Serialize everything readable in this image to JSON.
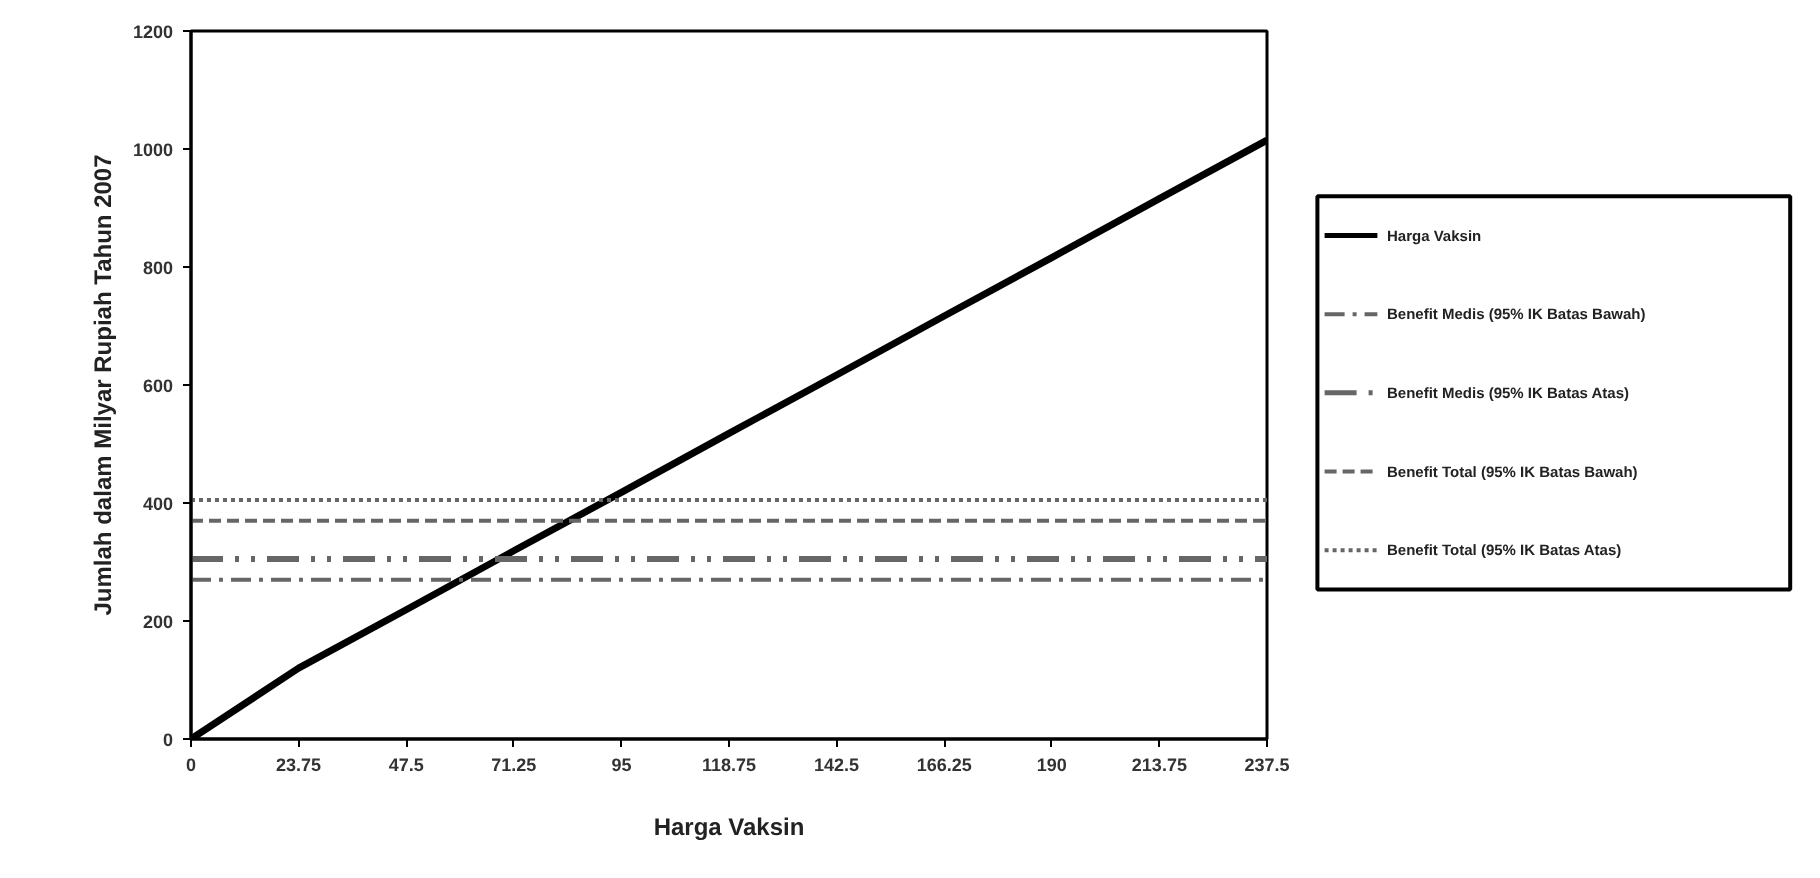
{
  "chart_data": {
    "type": "line",
    "xlabel": "Harga Vaksin",
    "ylabel": "Jumlah dalam Milyar Rupiah Tahun 2007",
    "x": [
      0,
      23.75,
      47.5,
      71.25,
      95,
      118.75,
      142.5,
      166.25,
      190,
      213.75,
      237.5
    ],
    "series": [
      {
        "name": "Harga Vaksin",
        "color": "#000000",
        "line_style": "solid",
        "values": [
          0,
          120,
          219,
          319,
          418,
          518,
          617,
          717,
          816,
          916,
          1015
        ]
      },
      {
        "name": "Benefit Medis (95% IK Batas Bawah)",
        "color": "#666666",
        "line_style": "dashdot",
        "values": [
          270,
          270,
          270,
          270,
          270,
          270,
          270,
          270,
          270,
          270,
          270
        ]
      },
      {
        "name": "Benefit Medis (95% IK Batas Atas)",
        "color": "#666666",
        "line_style": "dashdotdot",
        "values": [
          305,
          305,
          305,
          305,
          305,
          305,
          305,
          305,
          305,
          305,
          305
        ]
      },
      {
        "name": "Benefit Total (95% IK Batas Bawah)",
        "color": "#666666",
        "line_style": "dashed",
        "values": [
          370,
          370,
          370,
          370,
          370,
          370,
          370,
          370,
          370,
          370,
          370
        ]
      },
      {
        "name": "Benefit Total (95% IK Batas Atas)",
        "color": "#666666",
        "line_style": "dotted",
        "values": [
          405,
          405,
          405,
          405,
          405,
          405,
          405,
          405,
          405,
          405,
          405
        ]
      }
    ],
    "xlim": [
      0,
      237.5
    ],
    "xticks": [
      0,
      23.75,
      47.5,
      71.25,
      95,
      118.75,
      142.5,
      166.25,
      190,
      213.75,
      237.5
    ],
    "ylim": [
      0,
      1200
    ],
    "yticks": [
      0,
      200,
      400,
      600,
      800,
      1000,
      1200
    ],
    "grid": false,
    "legend": "right"
  }
}
